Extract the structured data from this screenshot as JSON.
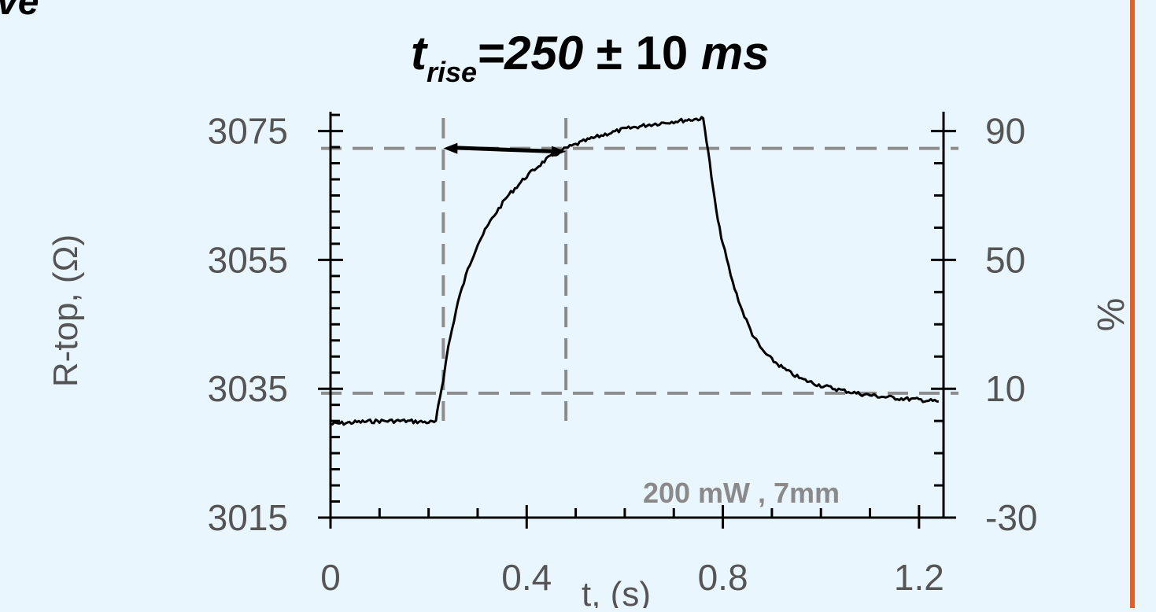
{
  "slide": {
    "corner_text": "ve",
    "accent_color": "#e0622a",
    "background_color": "#eaf6fd"
  },
  "chart_data": {
    "type": "line",
    "title": {
      "t": "t",
      "sub": "rise",
      "eq": "=",
      "value": "250",
      "pm": " ± 10 ",
      "unit": "ms"
    },
    "xlabel": "t, (s)",
    "ylabel": "R-top, (Ω)",
    "y2label": "%",
    "annotation": "200 mW , 7mm",
    "xlim": [
      0,
      1.25
    ],
    "ylim": [
      3015,
      3078
    ],
    "y2lim": [
      -30,
      96
    ],
    "xticks": [
      {
        "value": 0,
        "label": "0"
      },
      {
        "value": 0.4,
        "label": "0.4"
      },
      {
        "value": 0.8,
        "label": "0.8"
      },
      {
        "value": 1.2,
        "label": "1.2"
      }
    ],
    "yticks": [
      {
        "value": 3015,
        "label": "3015"
      },
      {
        "value": 3035,
        "label": "3035"
      },
      {
        "value": 3055,
        "label": "3055"
      },
      {
        "value": 3075,
        "label": "3075"
      }
    ],
    "y2ticks": [
      {
        "value": -30,
        "label": "-30"
      },
      {
        "value": 10,
        "label": "10"
      },
      {
        "value": 50,
        "label": "50"
      },
      {
        "value": 90,
        "label": "90"
      }
    ],
    "reference_lines": {
      "horizontal_y": [
        3072.3,
        3034.3
      ],
      "vertical_x": [
        0.23,
        0.48
      ]
    },
    "rise_arrow": {
      "x_start": 0.23,
      "x_end": 0.48,
      "y": 3072.3
    },
    "series": [
      {
        "x": [
          0.0,
          0.05,
          0.1,
          0.15,
          0.2,
          0.215,
          0.22,
          0.23,
          0.24,
          0.26,
          0.28,
          0.3,
          0.33,
          0.36,
          0.4,
          0.44,
          0.48,
          0.52,
          0.56,
          0.6,
          0.65,
          0.7,
          0.75,
          0.76,
          0.77,
          0.78,
          0.79,
          0.8,
          0.82,
          0.84,
          0.86,
          0.88,
          0.9,
          0.93,
          0.96,
          1.0,
          1.04,
          1.08,
          1.12,
          1.16,
          1.2,
          1.24
        ],
        "values": [
          3029.5,
          3029.8,
          3030.0,
          3030.0,
          3029.8,
          3029.8,
          3032.5,
          3036.5,
          3041.5,
          3048.5,
          3053.5,
          3057.5,
          3061.5,
          3064.8,
          3068.0,
          3070.6,
          3072.3,
          3073.5,
          3074.5,
          3075.3,
          3076.0,
          3076.5,
          3076.9,
          3076.9,
          3072.0,
          3066.0,
          3061.0,
          3057.5,
          3051.5,
          3047.0,
          3043.5,
          3041.0,
          3039.5,
          3037.8,
          3036.5,
          3035.5,
          3034.8,
          3034.2,
          3033.8,
          3033.5,
          3033.3,
          3033.0
        ]
      }
    ]
  }
}
